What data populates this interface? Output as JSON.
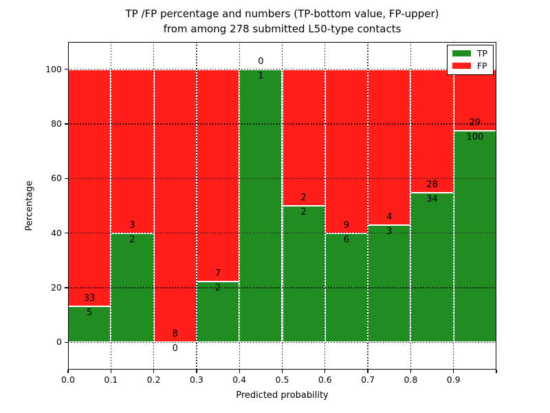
{
  "figure": {
    "title_line1": "TP /FP percentage and numbers (TP-bottom value, FP-upper)",
    "title_line2": "from among 278 submitted L50-type contacts"
  },
  "chart_data": {
    "type": "bar",
    "stacked": true,
    "normalized_to_percent": true,
    "title": "TP /FP percentage and numbers (TP-bottom value, FP-upper) from among 278 submitted L50-type contacts",
    "xlabel": "Predicted probability",
    "ylabel": "Percentage",
    "total_contacts": 278,
    "categories": [
      "0.0-0.1",
      "0.1-0.2",
      "0.2-0.3",
      "0.3-0.4",
      "0.4-0.5",
      "0.5-0.6",
      "0.6-0.7",
      "0.7-0.8",
      "0.8-0.9",
      "0.9-1.0"
    ],
    "x_tick_labels": [
      "0.0",
      "0.1",
      "0.2",
      "0.3",
      "0.4",
      "0.5",
      "0.6",
      "0.7",
      "0.8",
      "0.9"
    ],
    "y_ticks": [
      0,
      20,
      40,
      60,
      80,
      100
    ],
    "ylim": [
      -10,
      110
    ],
    "xlim": [
      0.0,
      1.0
    ],
    "grid": "dotted",
    "series": [
      {
        "name": "TP",
        "color": "#208c22",
        "counts": [
          5,
          2,
          0,
          2,
          1,
          2,
          6,
          3,
          34,
          100
        ],
        "percent": [
          13.2,
          40.0,
          0.0,
          22.2,
          100.0,
          50.0,
          40.0,
          42.9,
          54.8,
          77.5
        ]
      },
      {
        "name": "FP",
        "color": "#ff1f1a",
        "counts": [
          33,
          3,
          8,
          7,
          0,
          2,
          9,
          4,
          28,
          29
        ],
        "percent": [
          86.8,
          60.0,
          100.0,
          77.8,
          0.0,
          50.0,
          60.0,
          57.1,
          45.2,
          22.5
        ]
      }
    ],
    "legend_position": "upper right"
  }
}
